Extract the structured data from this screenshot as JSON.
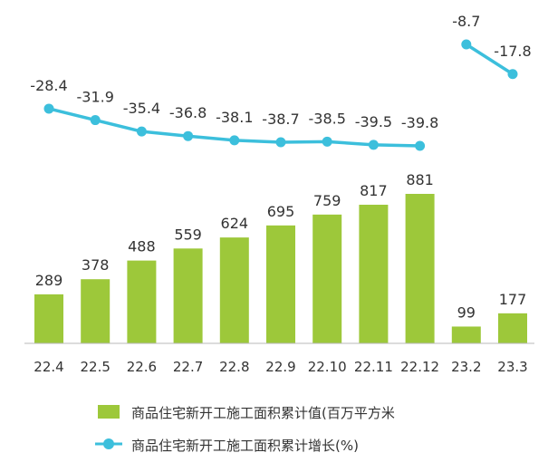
{
  "chart_data": {
    "type": "bar",
    "categories": [
      "22.4",
      "22.5",
      "22.6",
      "22.7",
      "22.8",
      "22.9",
      "22.10",
      "22.11",
      "22.12",
      "23.2",
      "23.3"
    ],
    "series": [
      {
        "name": "商品住宅新开工施工面积累计值(百万平方米",
        "type": "bar",
        "values": [
          289,
          378,
          488,
          559,
          624,
          695,
          759,
          817,
          881,
          99,
          177
        ],
        "color": "#9dc83a"
      },
      {
        "name": "商品住宅新开工施工面积累计增长(%)",
        "type": "line",
        "segments": [
          {
            "categories": [
              "22.4",
              "22.5",
              "22.6",
              "22.7",
              "22.8",
              "22.9",
              "22.10",
              "22.11",
              "22.12"
            ],
            "values": [
              -28.4,
              -31.9,
              -35.4,
              -36.8,
              -38.1,
              -38.7,
              -38.5,
              -39.5,
              -39.8
            ]
          },
          {
            "categories": [
              "23.2",
              "23.3"
            ],
            "values": [
              -8.7,
              -17.8
            ]
          }
        ],
        "color": "#3cbfdc"
      }
    ],
    "title": "",
    "xlabel": "",
    "ylabel": "",
    "grid": false,
    "legend_position": "bottom"
  }
}
